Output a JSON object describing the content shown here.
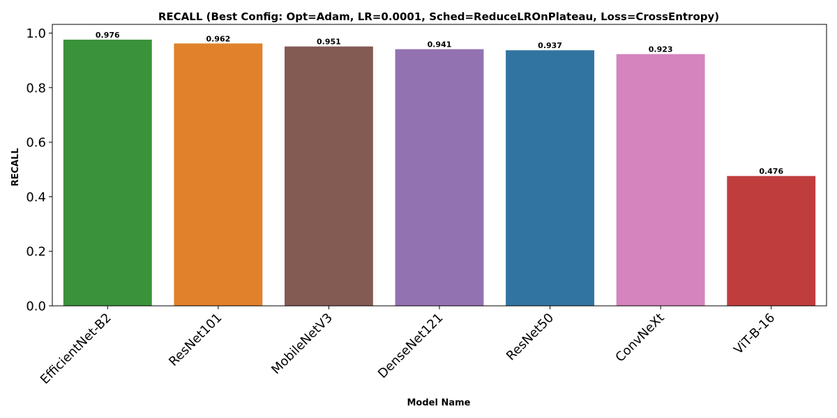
{
  "chart_data": {
    "type": "bar",
    "title": "RECALL (Best Config: Opt=Adam, LR=0.0001, Sched=ReduceLROnPlateau, Loss=CrossEntropy)",
    "xlabel": "Model Name",
    "ylabel": "RECALL",
    "categories": [
      "EfficientNet-B2",
      "ResNet101",
      "MobileNetV3",
      "DenseNet121",
      "ResNet50",
      "ConvNeXt",
      "ViT-B-16"
    ],
    "values": [
      0.976,
      0.962,
      0.951,
      0.941,
      0.937,
      0.923,
      0.476
    ],
    "data_labels": [
      "0.976",
      "0.962",
      "0.951",
      "0.941",
      "0.937",
      "0.923",
      "0.476"
    ],
    "colors": [
      "#3a923a",
      "#e1812c",
      "#845b53",
      "#9372b2",
      "#3274a1",
      "#d684bd",
      "#c03d3e"
    ],
    "ylim": [
      0,
      1.0
    ],
    "yticks": [
      0.0,
      0.2,
      0.4,
      0.6,
      0.8,
      1.0
    ],
    "ytick_labels": [
      "0.0",
      "0.2",
      "0.4",
      "0.6",
      "0.8",
      "1.0"
    ],
    "grid": false,
    "legend": "none"
  }
}
